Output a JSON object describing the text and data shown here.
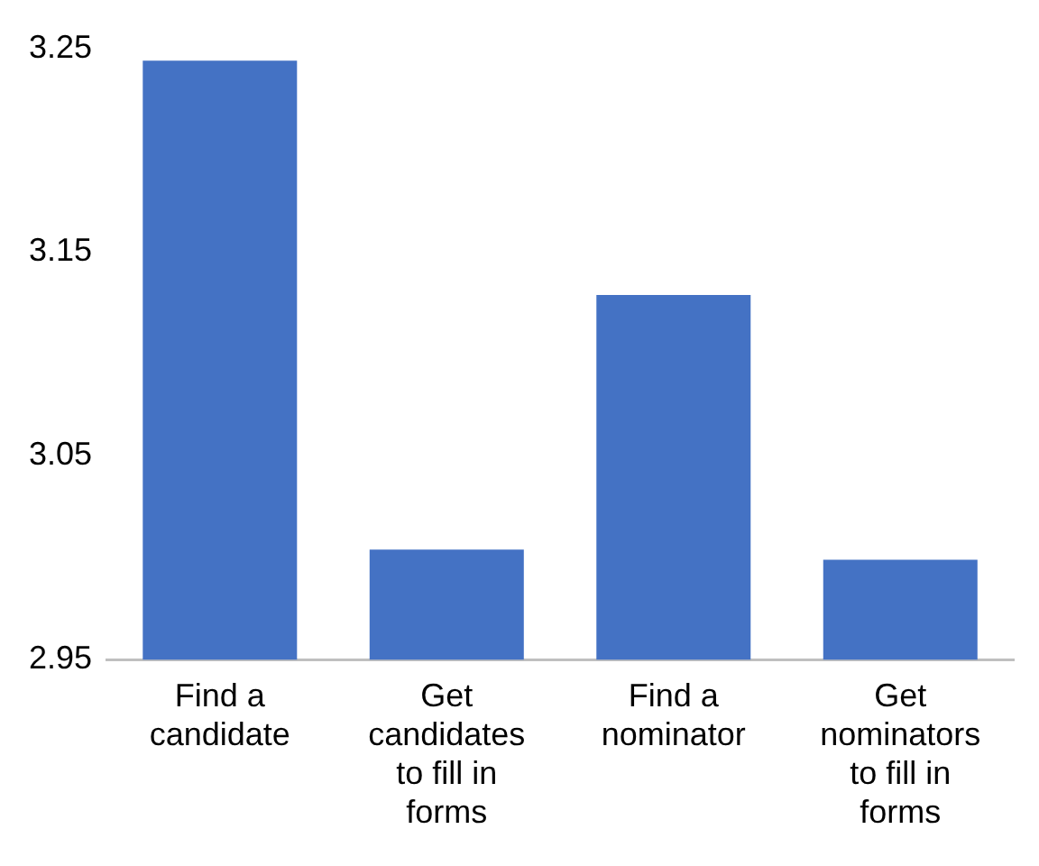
{
  "chart_data": {
    "type": "bar",
    "categories": [
      "Find a candidate",
      "Get candidates to fill in forms",
      "Find a nominator",
      "Get nominators to fill in forms"
    ],
    "values": [
      3.244,
      3.004,
      3.129,
      2.999
    ],
    "color": "#4472c4",
    "ylim": [
      2.95,
      3.25
    ],
    "yticks": [
      2.95,
      3.05,
      3.15,
      3.25
    ],
    "grid": false,
    "legend": false
  }
}
